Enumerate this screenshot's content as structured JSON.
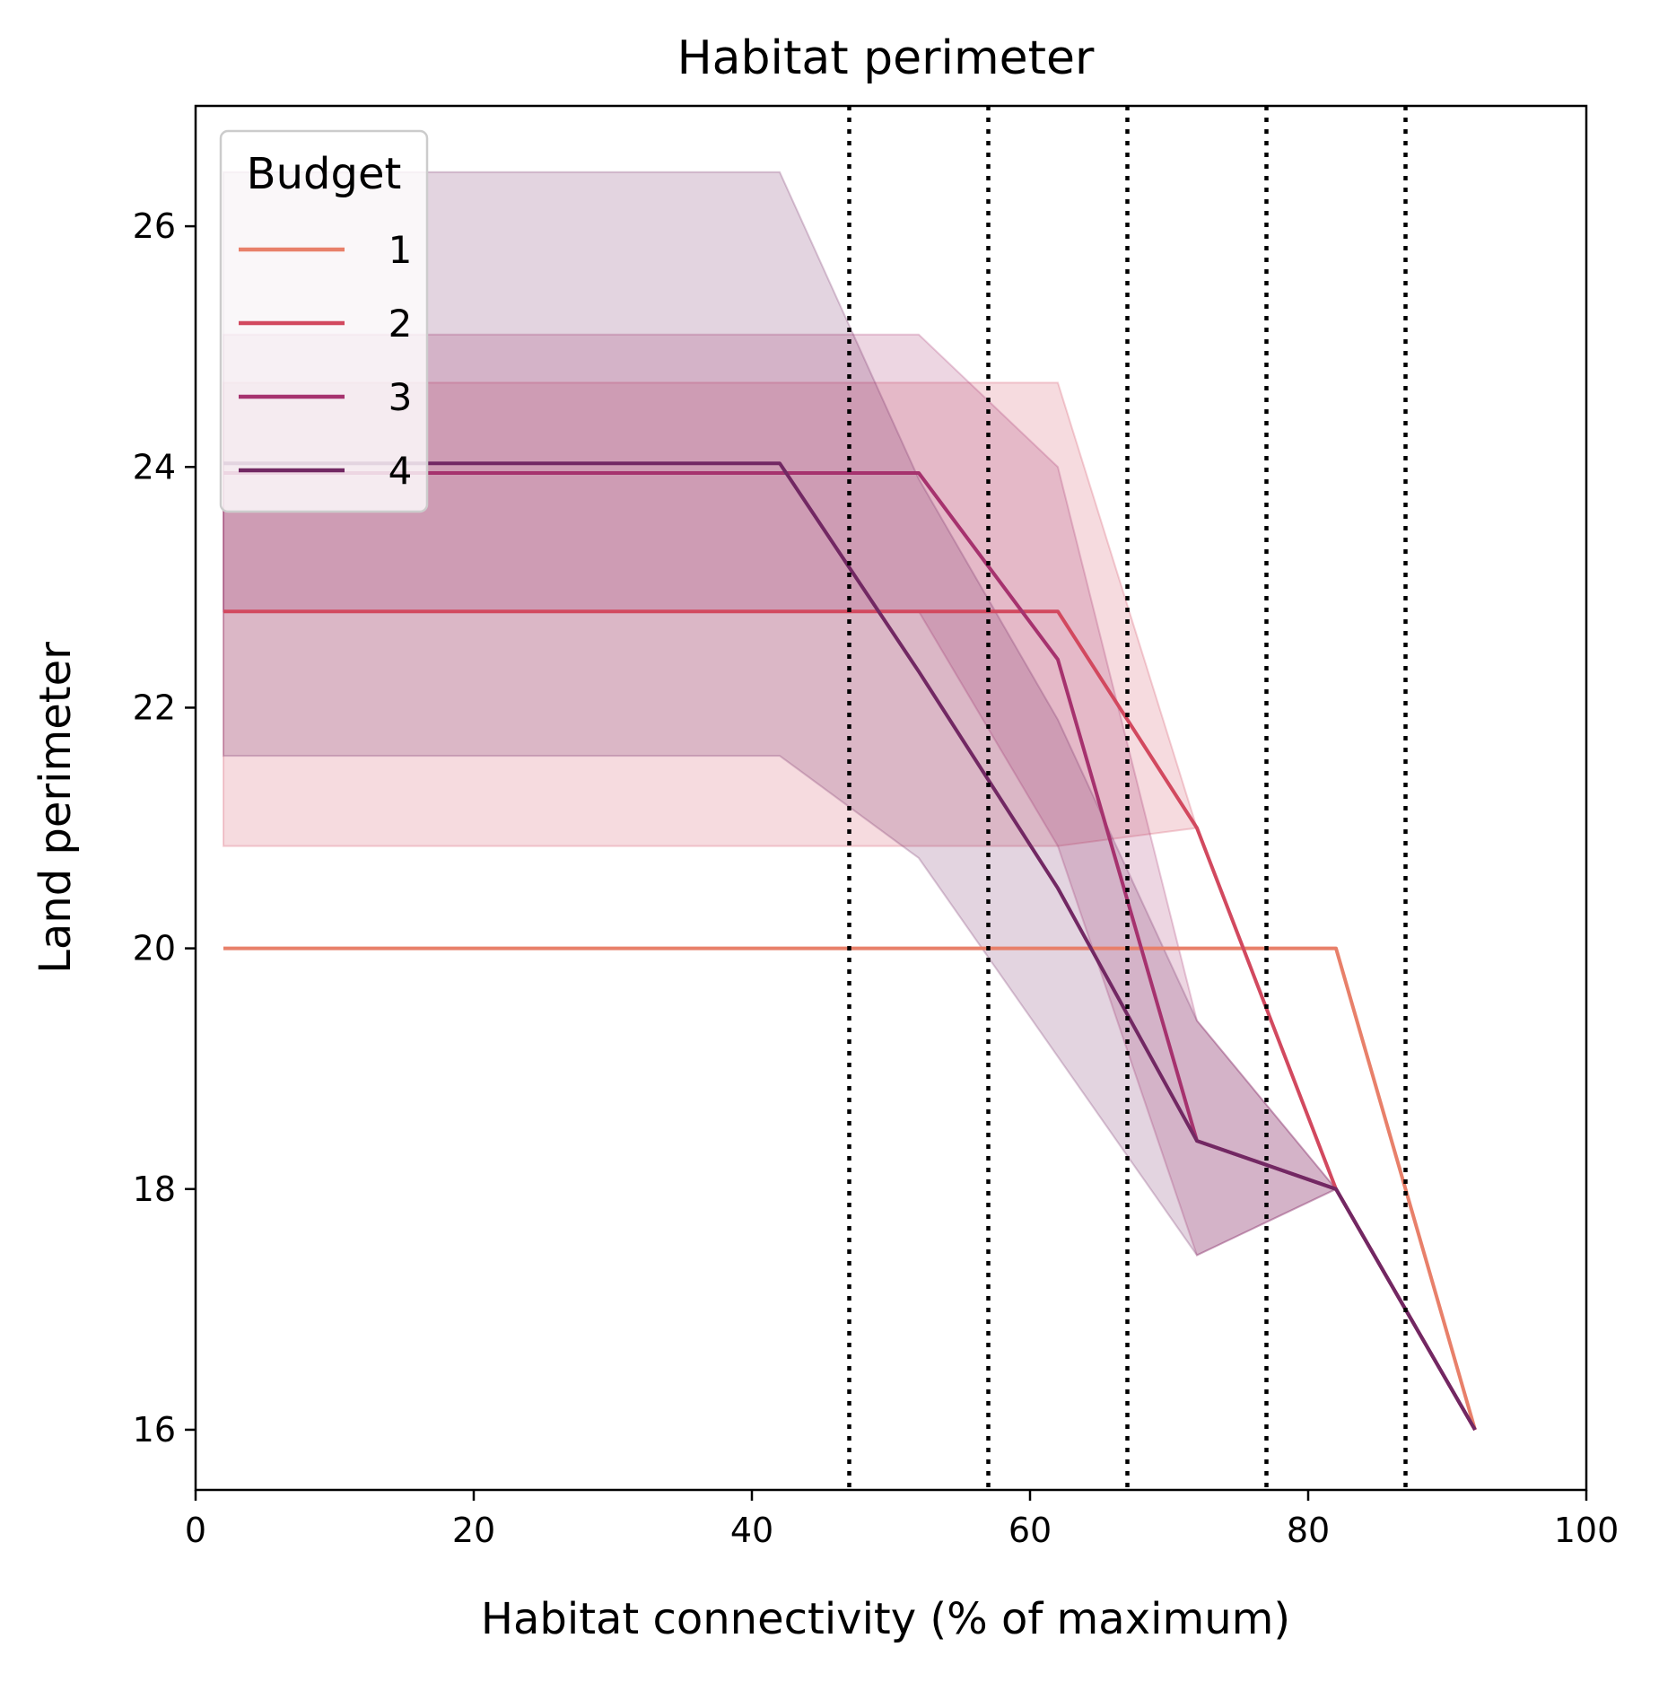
{
  "chart_data": {
    "type": "line",
    "title": "Habitat perimeter",
    "xlabel": "Habitat connectivity (% of maximum)",
    "ylabel": "Land perimeter",
    "xlim": [
      0,
      100
    ],
    "ylim": [
      15.5,
      27
    ],
    "xticks": [
      0,
      20,
      40,
      60,
      80,
      100
    ],
    "xtick_labels": [
      "0",
      "20",
      "40",
      "60",
      "80",
      "100"
    ],
    "yticks": [
      16,
      18,
      20,
      22,
      24,
      26
    ],
    "ytick_labels": [
      "16",
      "18",
      "20",
      "22",
      "24",
      "26"
    ],
    "grid": false,
    "legend": {
      "title": "Budget",
      "placement": "top-left"
    },
    "vlines": [
      47,
      57,
      67,
      77,
      87
    ],
    "vline_style": "dotted",
    "series": [
      {
        "name": "1",
        "color": "#e8806a",
        "x": [
          2,
          12,
          22,
          32,
          42,
          52,
          62,
          72,
          82,
          92
        ],
        "y": [
          20.0,
          20.0,
          20.0,
          20.0,
          20.0,
          20.0,
          20.0,
          20.0,
          20.0,
          16.0
        ],
        "lower": null,
        "upper": null
      },
      {
        "name": "2",
        "color": "#d2495f",
        "x": [
          2,
          12,
          22,
          32,
          42,
          52,
          62,
          72,
          82,
          92
        ],
        "y": [
          22.8,
          22.8,
          22.8,
          22.8,
          22.8,
          22.8,
          22.8,
          21.0,
          18.0,
          16.0
        ],
        "lower": [
          20.85,
          20.85,
          20.85,
          20.85,
          20.85,
          20.85,
          20.85,
          21.0,
          18.0,
          16.0
        ],
        "upper": [
          24.7,
          24.7,
          24.7,
          24.7,
          24.7,
          24.7,
          24.7,
          21.0,
          18.0,
          16.0
        ]
      },
      {
        "name": "3",
        "color": "#a6326e",
        "x": [
          2,
          12,
          22,
          32,
          42,
          52,
          62,
          72,
          82,
          92
        ],
        "y": [
          23.95,
          23.95,
          23.95,
          23.95,
          23.95,
          23.95,
          22.4,
          18.4,
          18.0,
          16.0
        ],
        "lower": [
          22.8,
          22.8,
          22.8,
          22.8,
          22.8,
          22.8,
          20.85,
          17.45,
          18.0,
          16.0
        ],
        "upper": [
          25.1,
          25.1,
          25.1,
          25.1,
          25.1,
          25.1,
          24.0,
          19.4,
          18.0,
          16.0
        ]
      },
      {
        "name": "4",
        "color": "#722863",
        "x": [
          2,
          12,
          22,
          32,
          42,
          52,
          62,
          72,
          82,
          92
        ],
        "y": [
          24.03,
          24.03,
          24.03,
          24.03,
          24.03,
          22.3,
          20.5,
          18.4,
          18.0,
          16.0
        ],
        "lower": [
          21.6,
          21.6,
          21.6,
          21.6,
          21.6,
          20.75,
          19.1,
          17.45,
          18.0,
          16.0
        ],
        "upper": [
          26.45,
          26.45,
          26.45,
          26.45,
          26.45,
          23.9,
          21.9,
          19.4,
          18.0,
          16.0
        ]
      }
    ]
  }
}
